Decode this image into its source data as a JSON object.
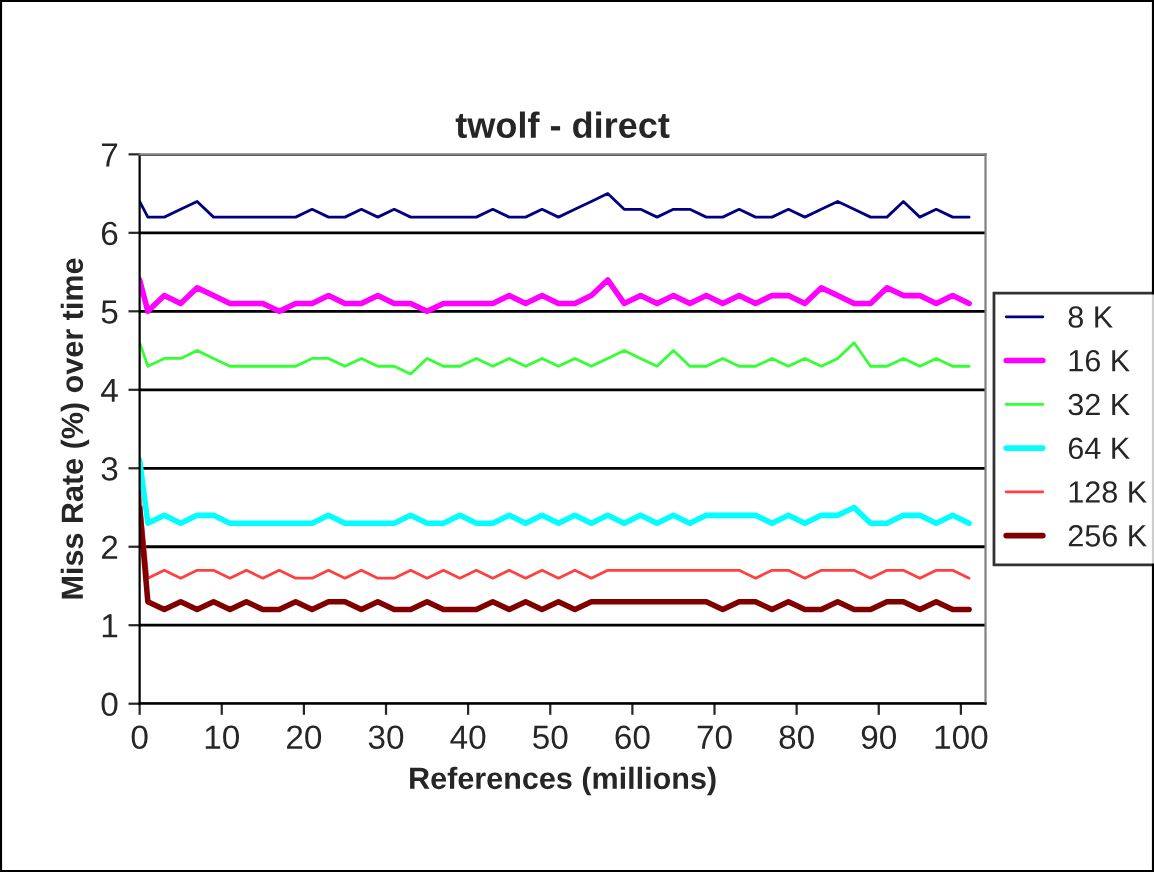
{
  "chart_data": {
    "type": "line",
    "title": "twolf - direct",
    "xlabel": "References (millions)",
    "ylabel": "Miss Rate (%) over time",
    "x": [
      0,
      1,
      3,
      5,
      7,
      9,
      11,
      13,
      15,
      17,
      19,
      21,
      23,
      25,
      27,
      29,
      31,
      33,
      35,
      37,
      39,
      41,
      43,
      45,
      47,
      49,
      51,
      53,
      55,
      57,
      59,
      61,
      63,
      65,
      67,
      69,
      71,
      73,
      75,
      77,
      79,
      81,
      83,
      85,
      87,
      89,
      91,
      93,
      95,
      97,
      99,
      101
    ],
    "xlim": [
      0,
      103
    ],
    "xticks": [
      0,
      10,
      20,
      30,
      40,
      50,
      60,
      70,
      80,
      90,
      100
    ],
    "ylim": [
      0,
      7
    ],
    "yticks": [
      0,
      1,
      2,
      3,
      4,
      5,
      6,
      7
    ],
    "grid": "y",
    "legend": "right",
    "marker": "none",
    "line_style": "solid",
    "series": [
      {
        "name": "8 K",
        "color": "#000080",
        "values": [
          6.4,
          6.2,
          6.2,
          6.3,
          6.4,
          6.2,
          6.2,
          6.2,
          6.2,
          6.2,
          6.2,
          6.3,
          6.2,
          6.2,
          6.3,
          6.2,
          6.3,
          6.2,
          6.2,
          6.2,
          6.2,
          6.2,
          6.3,
          6.2,
          6.2,
          6.3,
          6.2,
          6.3,
          6.4,
          6.5,
          6.3,
          6.3,
          6.2,
          6.3,
          6.3,
          6.2,
          6.2,
          6.3,
          6.2,
          6.2,
          6.3,
          6.2,
          6.3,
          6.4,
          6.3,
          6.2,
          6.2,
          6.4,
          6.2,
          6.3,
          6.2,
          6.2
        ]
      },
      {
        "name": "16 K",
        "color": "#ff00ff",
        "values": [
          5.4,
          5.0,
          5.2,
          5.1,
          5.3,
          5.2,
          5.1,
          5.1,
          5.1,
          5.0,
          5.1,
          5.1,
          5.2,
          5.1,
          5.1,
          5.2,
          5.1,
          5.1,
          5.0,
          5.1,
          5.1,
          5.1,
          5.1,
          5.2,
          5.1,
          5.2,
          5.1,
          5.1,
          5.2,
          5.4,
          5.1,
          5.2,
          5.1,
          5.2,
          5.1,
          5.2,
          5.1,
          5.2,
          5.1,
          5.2,
          5.2,
          5.1,
          5.3,
          5.2,
          5.1,
          5.1,
          5.3,
          5.2,
          5.2,
          5.1,
          5.2,
          5.1
        ]
      },
      {
        "name": "32 K",
        "color": "#33ff33",
        "values": [
          4.6,
          4.3,
          4.4,
          4.4,
          4.5,
          4.4,
          4.3,
          4.3,
          4.3,
          4.3,
          4.3,
          4.4,
          4.4,
          4.3,
          4.4,
          4.3,
          4.3,
          4.2,
          4.4,
          4.3,
          4.3,
          4.4,
          4.3,
          4.4,
          4.3,
          4.4,
          4.3,
          4.4,
          4.3,
          4.4,
          4.5,
          4.4,
          4.3,
          4.5,
          4.3,
          4.3,
          4.4,
          4.3,
          4.3,
          4.4,
          4.3,
          4.4,
          4.3,
          4.4,
          4.6,
          4.3,
          4.3,
          4.4,
          4.3,
          4.4,
          4.3,
          4.3
        ]
      },
      {
        "name": "64 K",
        "color": "#00ffff",
        "values": [
          3.1,
          2.3,
          2.4,
          2.3,
          2.4,
          2.4,
          2.3,
          2.3,
          2.3,
          2.3,
          2.3,
          2.3,
          2.4,
          2.3,
          2.3,
          2.3,
          2.3,
          2.4,
          2.3,
          2.3,
          2.4,
          2.3,
          2.3,
          2.4,
          2.3,
          2.4,
          2.3,
          2.4,
          2.3,
          2.4,
          2.3,
          2.4,
          2.3,
          2.4,
          2.3,
          2.4,
          2.4,
          2.4,
          2.4,
          2.3,
          2.4,
          2.3,
          2.4,
          2.4,
          2.5,
          2.3,
          2.3,
          2.4,
          2.4,
          2.3,
          2.4,
          2.3
        ]
      },
      {
        "name": "128 K",
        "color": "#ff4040",
        "values": [
          2.7,
          1.6,
          1.7,
          1.6,
          1.7,
          1.7,
          1.6,
          1.7,
          1.6,
          1.7,
          1.6,
          1.6,
          1.7,
          1.6,
          1.7,
          1.6,
          1.6,
          1.7,
          1.6,
          1.7,
          1.6,
          1.7,
          1.6,
          1.7,
          1.6,
          1.7,
          1.6,
          1.7,
          1.6,
          1.7,
          1.7,
          1.7,
          1.7,
          1.7,
          1.7,
          1.7,
          1.7,
          1.7,
          1.6,
          1.7,
          1.7,
          1.6,
          1.7,
          1.7,
          1.7,
          1.6,
          1.7,
          1.7,
          1.6,
          1.7,
          1.7,
          1.6
        ]
      },
      {
        "name": "256 K",
        "color": "#800000",
        "values": [
          2.5,
          1.3,
          1.2,
          1.3,
          1.2,
          1.3,
          1.2,
          1.3,
          1.2,
          1.2,
          1.3,
          1.2,
          1.3,
          1.3,
          1.2,
          1.3,
          1.2,
          1.2,
          1.3,
          1.2,
          1.2,
          1.2,
          1.3,
          1.2,
          1.3,
          1.2,
          1.3,
          1.2,
          1.3,
          1.3,
          1.3,
          1.3,
          1.3,
          1.3,
          1.3,
          1.3,
          1.2,
          1.3,
          1.3,
          1.2,
          1.3,
          1.2,
          1.2,
          1.3,
          1.2,
          1.2,
          1.3,
          1.3,
          1.2,
          1.3,
          1.2,
          1.2
        ]
      }
    ]
  }
}
